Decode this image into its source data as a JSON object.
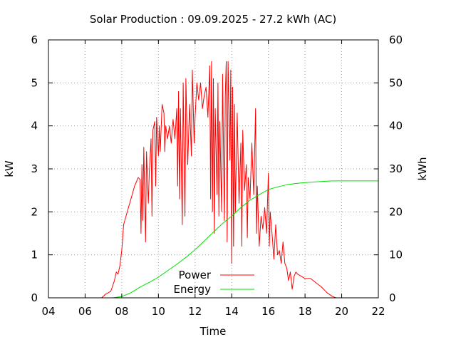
{
  "chart_data": {
    "type": "line",
    "title": "Solar Production : 09.09.2025 - 27.2 kWh (AC)",
    "xlabel": "Time",
    "ylabel": "kW",
    "y2label": "kWh",
    "xlim": [
      4,
      22
    ],
    "ylim": [
      0,
      6
    ],
    "y2lim": [
      0,
      60
    ],
    "xticks": [
      "04",
      "06",
      "08",
      "10",
      "12",
      "14",
      "16",
      "18",
      "20",
      "22"
    ],
    "yticks": [
      "0",
      "1",
      "2",
      "3",
      "4",
      "5",
      "6"
    ],
    "y2ticks": [
      "0",
      "10",
      "20",
      "30",
      "40",
      "50",
      "60"
    ],
    "grid": true,
    "legend_position": "bottom-center",
    "series": [
      {
        "name": "Power",
        "axis": "left",
        "color": "#ff0000",
        "points": [
          [
            6.9,
            0.0
          ],
          [
            7.1,
            0.08
          ],
          [
            7.4,
            0.15
          ],
          [
            7.6,
            0.4
          ],
          [
            7.7,
            0.6
          ],
          [
            7.8,
            0.55
          ],
          [
            7.9,
            0.75
          ],
          [
            8.0,
            1.1
          ],
          [
            8.1,
            1.7
          ],
          [
            8.3,
            2.0
          ],
          [
            8.5,
            2.3
          ],
          [
            8.7,
            2.6
          ],
          [
            8.9,
            2.8
          ],
          [
            9.0,
            2.75
          ],
          [
            9.05,
            1.5
          ],
          [
            9.1,
            3.1
          ],
          [
            9.15,
            1.8
          ],
          [
            9.2,
            3.5
          ],
          [
            9.3,
            1.3
          ],
          [
            9.35,
            3.4
          ],
          [
            9.45,
            2.2
          ],
          [
            9.5,
            2.9
          ],
          [
            9.6,
            3.7
          ],
          [
            9.65,
            1.9
          ],
          [
            9.7,
            3.9
          ],
          [
            9.8,
            4.1
          ],
          [
            9.85,
            2.6
          ],
          [
            9.9,
            4.2
          ],
          [
            10.0,
            3.3
          ],
          [
            10.05,
            4.0
          ],
          [
            10.1,
            3.4
          ],
          [
            10.2,
            4.5
          ],
          [
            10.3,
            4.3
          ],
          [
            10.35,
            3.4
          ],
          [
            10.4,
            4.0
          ],
          [
            10.5,
            3.7
          ],
          [
            10.6,
            4.0
          ],
          [
            10.7,
            3.6
          ],
          [
            10.8,
            4.15
          ],
          [
            10.9,
            3.7
          ],
          [
            11.0,
            4.4
          ],
          [
            11.05,
            2.6
          ],
          [
            11.1,
            4.8
          ],
          [
            11.15,
            2.3
          ],
          [
            11.2,
            4.4
          ],
          [
            11.3,
            1.7
          ],
          [
            11.35,
            5.0
          ],
          [
            11.45,
            1.9
          ],
          [
            11.5,
            5.1
          ],
          [
            11.6,
            3.1
          ],
          [
            11.7,
            4.5
          ],
          [
            11.8,
            3.3
          ],
          [
            11.85,
            5.3
          ],
          [
            11.95,
            3.6
          ],
          [
            12.0,
            4.2
          ],
          [
            12.1,
            5.0
          ],
          [
            12.2,
            4.6
          ],
          [
            12.3,
            5.0
          ],
          [
            12.4,
            4.4
          ],
          [
            12.5,
            4.7
          ],
          [
            12.6,
            4.9
          ],
          [
            12.7,
            4.2
          ],
          [
            12.8,
            5.4
          ],
          [
            12.85,
            2.3
          ],
          [
            12.9,
            5.5
          ],
          [
            12.95,
            2.0
          ],
          [
            13.0,
            5.1
          ],
          [
            13.05,
            1.5
          ],
          [
            13.1,
            4.4
          ],
          [
            13.2,
            2.4
          ],
          [
            13.25,
            5.0
          ],
          [
            13.3,
            1.9
          ],
          [
            13.35,
            4.1
          ],
          [
            13.45,
            2.0
          ],
          [
            13.5,
            5.2
          ],
          [
            13.6,
            1.8
          ],
          [
            13.65,
            4.7
          ],
          [
            13.7,
            5.5
          ],
          [
            13.75,
            1.3
          ],
          [
            13.8,
            5.5
          ],
          [
            13.9,
            3.2
          ],
          [
            13.95,
            5.3
          ],
          [
            14.0,
            0.8
          ],
          [
            14.05,
            4.9
          ],
          [
            14.1,
            1.2
          ],
          [
            14.15,
            4.5
          ],
          [
            14.2,
            2.0
          ],
          [
            14.3,
            4.3
          ],
          [
            14.4,
            2.2
          ],
          [
            14.5,
            3.6
          ],
          [
            14.55,
            1.2
          ],
          [
            14.6,
            3.9
          ],
          [
            14.7,
            2.5
          ],
          [
            14.8,
            3.1
          ],
          [
            14.85,
            1.4
          ],
          [
            14.9,
            2.8
          ],
          [
            15.0,
            2.3
          ],
          [
            15.1,
            3.6
          ],
          [
            15.2,
            2.4
          ],
          [
            15.3,
            4.4
          ],
          [
            15.35,
            1.5
          ],
          [
            15.4,
            2.6
          ],
          [
            15.5,
            1.2
          ],
          [
            15.6,
            1.9
          ],
          [
            15.7,
            1.6
          ],
          [
            15.8,
            2.1
          ],
          [
            15.9,
            1.5
          ],
          [
            16.0,
            2.9
          ],
          [
            16.05,
            1.2
          ],
          [
            16.1,
            2.0
          ],
          [
            16.2,
            1.5
          ],
          [
            16.3,
            0.9
          ],
          [
            16.4,
            1.7
          ],
          [
            16.5,
            1.0
          ],
          [
            16.6,
            1.1
          ],
          [
            16.7,
            0.8
          ],
          [
            16.8,
            1.3
          ],
          [
            16.9,
            0.8
          ],
          [
            17.0,
            0.7
          ],
          [
            17.1,
            0.4
          ],
          [
            17.2,
            0.6
          ],
          [
            17.3,
            0.2
          ],
          [
            17.4,
            0.5
          ],
          [
            17.5,
            0.6
          ],
          [
            17.6,
            0.55
          ],
          [
            17.8,
            0.5
          ],
          [
            18.0,
            0.45
          ],
          [
            18.3,
            0.45
          ],
          [
            18.6,
            0.35
          ],
          [
            18.9,
            0.25
          ],
          [
            19.2,
            0.12
          ],
          [
            19.5,
            0.03
          ],
          [
            19.7,
            0.0
          ]
        ]
      },
      {
        "name": "Energy",
        "axis": "right",
        "color": "#00e000",
        "points": [
          [
            7.5,
            0.0
          ],
          [
            8.0,
            0.3
          ],
          [
            8.5,
            1.2
          ],
          [
            9.0,
            2.5
          ],
          [
            9.5,
            3.6
          ],
          [
            10.0,
            4.8
          ],
          [
            10.5,
            6.3
          ],
          [
            11.0,
            7.8
          ],
          [
            11.5,
            9.4
          ],
          [
            12.0,
            11.2
          ],
          [
            12.5,
            13.2
          ],
          [
            13.0,
            15.3
          ],
          [
            13.5,
            17.3
          ],
          [
            14.0,
            19.0
          ],
          [
            14.5,
            21.0
          ],
          [
            15.0,
            22.7
          ],
          [
            15.5,
            24.0
          ],
          [
            16.0,
            25.2
          ],
          [
            16.5,
            25.8
          ],
          [
            17.0,
            26.3
          ],
          [
            17.5,
            26.6
          ],
          [
            18.0,
            26.8
          ],
          [
            18.5,
            26.95
          ],
          [
            19.0,
            27.1
          ],
          [
            19.5,
            27.2
          ],
          [
            20.0,
            27.2
          ],
          [
            21.0,
            27.2
          ],
          [
            22.0,
            27.2
          ]
        ]
      }
    ]
  }
}
